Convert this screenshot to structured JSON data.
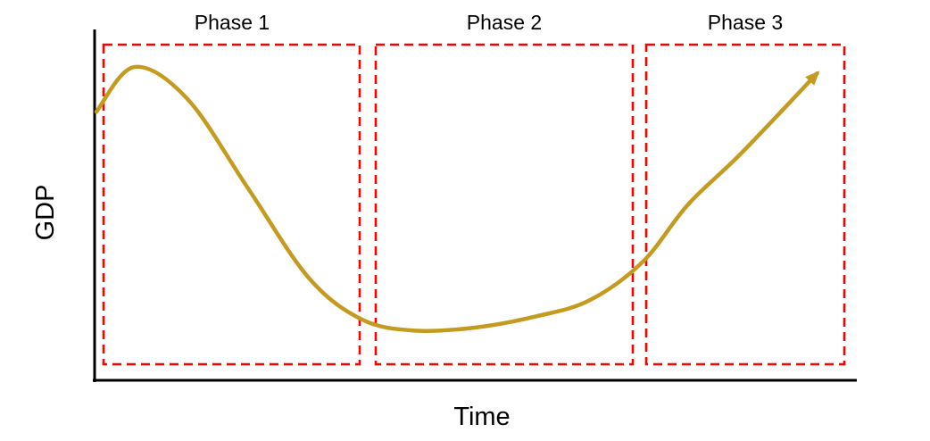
{
  "chart_data": {
    "type": "line",
    "title": "",
    "xlabel": "Time",
    "ylabel": "GDP",
    "x_ticks_shown": false,
    "y_ticks_shown": false,
    "grid": false,
    "legend": "none",
    "phases": [
      {
        "label": "Phase 1"
      },
      {
        "label": "Phase 2"
      },
      {
        "label": "Phase 3"
      }
    ],
    "series": [
      {
        "line_color": "#c49a1f",
        "arrow_at_end": true,
        "points": [
          {
            "x": 0.0,
            "y": 0.79
          },
          {
            "x": 0.05,
            "y": 0.93
          },
          {
            "x": 0.12,
            "y": 0.83
          },
          {
            "x": 0.2,
            "y": 0.55
          },
          {
            "x": 0.28,
            "y": 0.27
          },
          {
            "x": 0.35,
            "y": 0.14
          },
          {
            "x": 0.42,
            "y": 0.105
          },
          {
            "x": 0.5,
            "y": 0.115
          },
          {
            "x": 0.58,
            "y": 0.15
          },
          {
            "x": 0.65,
            "y": 0.2
          },
          {
            "x": 0.72,
            "y": 0.32
          },
          {
            "x": 0.78,
            "y": 0.5
          },
          {
            "x": 0.85,
            "y": 0.66
          },
          {
            "x": 0.95,
            "y": 0.91
          }
        ]
      }
    ],
    "phase_box_color": "#ff0000",
    "axis_color": "#000000"
  }
}
